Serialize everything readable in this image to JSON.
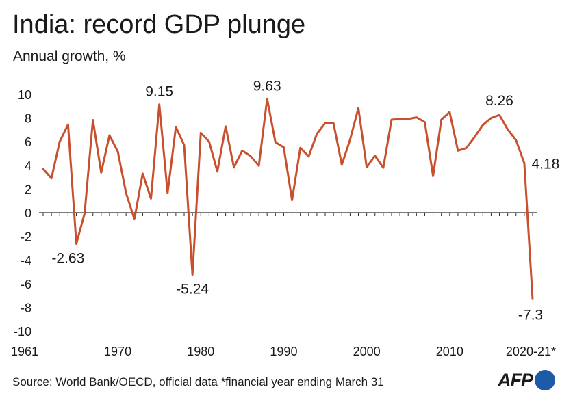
{
  "title": "India: record GDP plunge",
  "subtitle": "Annual growth, %",
  "source": "Source: World Bank/OECD, official data   *financial year ending March 31",
  "logo": "AFP",
  "colors": {
    "line": "#c8502e",
    "axis": "#2b2b2b",
    "text": "#1a1a1a",
    "logo_dot": "#1c5ba8"
  },
  "chart_data": {
    "type": "line",
    "title": "India: record GDP plunge",
    "subtitle": "Annual growth, %",
    "xlabel": "",
    "ylabel": "",
    "ylim": [
      -10,
      10
    ],
    "yticks": [
      10,
      8,
      6,
      4,
      2,
      0,
      -2,
      -4,
      -6,
      -8,
      -10
    ],
    "xticks": [
      {
        "x": 1961,
        "label": "1961"
      },
      {
        "x": 1970,
        "label": "1970"
      },
      {
        "x": 1980,
        "label": "1980"
      },
      {
        "x": 1990,
        "label": "1990"
      },
      {
        "x": 2000,
        "label": "2000"
      },
      {
        "x": 2010,
        "label": "2010"
      },
      {
        "x": 2020,
        "label": "2020-21*"
      }
    ],
    "xlim": [
      1961,
      2020
    ],
    "grid": false,
    "series": [
      {
        "x": [
          1961,
          1962,
          1963,
          1964,
          1965,
          1966,
          1967,
          1968,
          1969,
          1970,
          1971,
          1972,
          1973,
          1974,
          1975,
          1976,
          1977,
          1978,
          1979,
          1980,
          1981,
          1982,
          1983,
          1984,
          1985,
          1986,
          1987,
          1988,
          1989,
          1990,
          1991,
          1992,
          1993,
          1994,
          1995,
          1996,
          1997,
          1998,
          1999,
          2000,
          2001,
          2002,
          2003,
          2004,
          2005,
          2006,
          2007,
          2008,
          2009,
          2010,
          2011,
          2012,
          2013,
          2014,
          2015,
          2016,
          2017,
          2018,
          2019,
          2020
        ],
        "values": [
          3.7,
          2.9,
          6.0,
          7.45,
          -2.63,
          -0.06,
          7.83,
          3.39,
          6.54,
          5.16,
          1.64,
          -0.55,
          3.3,
          1.19,
          9.15,
          1.66,
          7.25,
          5.71,
          -5.24,
          6.74,
          6.01,
          3.48,
          7.29,
          3.82,
          5.25,
          4.78,
          3.97,
          9.63,
          5.95,
          5.53,
          1.06,
          5.48,
          4.75,
          6.66,
          7.57,
          7.55,
          4.05,
          6.18,
          8.85,
          3.84,
          4.82,
          3.8,
          7.86,
          7.92,
          7.92,
          8.06,
          7.66,
          3.09,
          7.86,
          8.5,
          5.24,
          5.46,
          6.39,
          7.41,
          8.0,
          8.26,
          7.04,
          6.12,
          4.18,
          -7.3
        ]
      }
    ],
    "annotations": [
      {
        "x": 1964,
        "y": -2.63,
        "text": "-2.63"
      },
      {
        "x": 1975,
        "y": 9.15,
        "text": "9.15"
      },
      {
        "x": 1979,
        "y": -5.24,
        "text": "-5.24"
      },
      {
        "x": 1988,
        "y": 9.63,
        "text": "9.63"
      },
      {
        "x": 2016,
        "y": 8.26,
        "text": "8.26"
      },
      {
        "x": 2019,
        "y": 4.18,
        "text": "4.18"
      },
      {
        "x": 2020,
        "y": -7.3,
        "text": "-7.3"
      }
    ]
  }
}
